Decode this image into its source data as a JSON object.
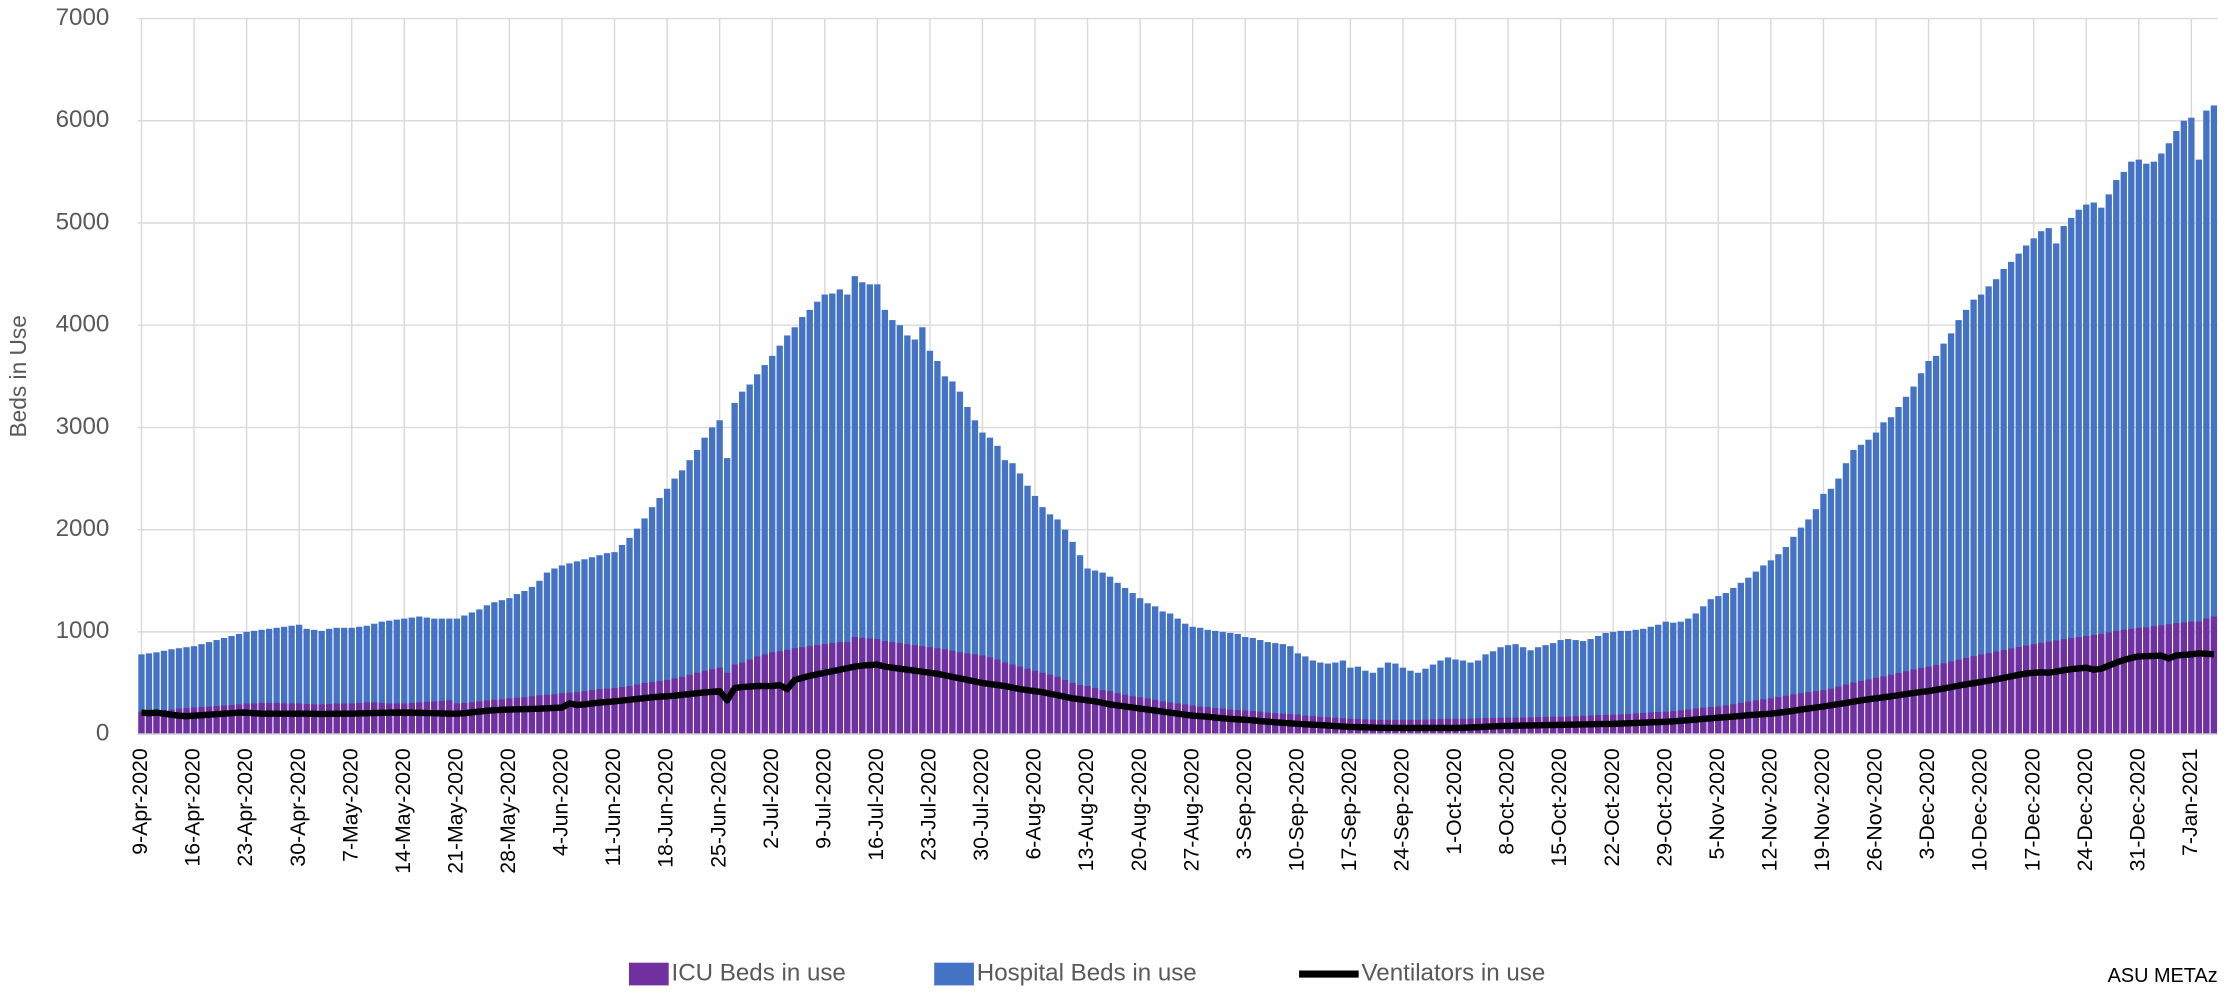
{
  "chart_data": {
    "type": "bar",
    "y_label": "Beds in Use",
    "annotation": "ASU METAz",
    "categories": [
      "9-Apr-2020",
      null,
      null,
      null,
      null,
      null,
      null,
      "16-Apr-2020",
      null,
      null,
      null,
      null,
      null,
      null,
      "23-Apr-2020",
      null,
      null,
      null,
      null,
      null,
      null,
      "30-Apr-2020",
      null,
      null,
      null,
      null,
      null,
      null,
      "7-May-2020",
      null,
      null,
      null,
      null,
      null,
      null,
      "14-May-2020",
      null,
      null,
      null,
      null,
      null,
      null,
      "21-May-2020",
      null,
      null,
      null,
      null,
      null,
      null,
      "28-May-2020",
      null,
      null,
      null,
      null,
      null,
      null,
      "4-Jun-2020",
      null,
      null,
      null,
      null,
      null,
      null,
      "11-Jun-2020",
      null,
      null,
      null,
      null,
      null,
      null,
      "18-Jun-2020",
      null,
      null,
      null,
      null,
      null,
      null,
      "25-Jun-2020",
      null,
      null,
      null,
      null,
      null,
      null,
      "2-Jul-2020",
      null,
      null,
      null,
      null,
      null,
      null,
      "9-Jul-2020",
      null,
      null,
      null,
      null,
      null,
      null,
      "16-Jul-2020",
      null,
      null,
      null,
      null,
      null,
      null,
      "23-Jul-2020",
      null,
      null,
      null,
      null,
      null,
      null,
      "30-Jul-2020",
      null,
      null,
      null,
      null,
      null,
      null,
      "6-Aug-2020",
      null,
      null,
      null,
      null,
      null,
      null,
      "13-Aug-2020",
      null,
      null,
      null,
      null,
      null,
      null,
      "20-Aug-2020",
      null,
      null,
      null,
      null,
      null,
      null,
      "27-Aug-2020",
      null,
      null,
      null,
      null,
      null,
      null,
      "3-Sep-2020",
      null,
      null,
      null,
      null,
      null,
      null,
      "10-Sep-2020",
      null,
      null,
      null,
      null,
      null,
      null,
      "17-Sep-2020",
      null,
      null,
      null,
      null,
      null,
      null,
      "24-Sep-2020",
      null,
      null,
      null,
      null,
      null,
      null,
      "1-Oct-2020",
      null,
      null,
      null,
      null,
      null,
      null,
      "8-Oct-2020",
      null,
      null,
      null,
      null,
      null,
      null,
      "15-Oct-2020",
      null,
      null,
      null,
      null,
      null,
      null,
      "22-Oct-2020",
      null,
      null,
      null,
      null,
      null,
      null,
      "29-Oct-2020",
      null,
      null,
      null,
      null,
      null,
      null,
      "5-Nov-2020",
      null,
      null,
      null,
      null,
      null,
      null,
      "12-Nov-2020",
      null,
      null,
      null,
      null,
      null,
      null,
      "19-Nov-2020",
      null,
      null,
      null,
      null,
      null,
      null,
      "26-Nov-2020",
      null,
      null,
      null,
      null,
      null,
      null,
      "3-Dec-2020",
      null,
      null,
      null,
      null,
      null,
      null,
      "10-Dec-2020",
      null,
      null,
      null,
      null,
      null,
      null,
      "17-Dec-2020",
      null,
      null,
      null,
      null,
      null,
      null,
      "24-Dec-2020",
      null,
      null,
      null,
      null,
      null,
      null,
      "31-Dec-2020",
      null,
      null,
      null,
      null,
      null,
      null,
      "7-Jan-2021",
      null,
      null,
      null
    ],
    "series": [
      {
        "name": "ICU Beds in use",
        "type": "bar",
        "color": "#7030a0",
        "values": [
          220,
          225,
          230,
          235,
          240,
          250,
          255,
          260,
          265,
          270,
          275,
          280,
          285,
          290,
          300,
          300,
          305,
          305,
          305,
          300,
          300,
          300,
          295,
          290,
          290,
          295,
          300,
          300,
          300,
          305,
          310,
          310,
          305,
          300,
          300,
          300,
          305,
          310,
          315,
          320,
          325,
          330,
          300,
          305,
          310,
          320,
          330,
          335,
          340,
          350,
          355,
          360,
          370,
          380,
          385,
          390,
          400,
          405,
          410,
          420,
          430,
          440,
          445,
          450,
          460,
          470,
          485,
          500,
          510,
          520,
          530,
          545,
          560,
          580,
          600,
          620,
          635,
          650,
          600,
          680,
          700,
          730,
          760,
          780,
          800,
          810,
          825,
          840,
          850,
          860,
          870,
          880,
          890,
          900,
          900,
          950,
          940,
          935,
          930,
          910,
          900,
          890,
          880,
          870,
          860,
          850,
          840,
          830,
          815,
          800,
          790,
          780,
          770,
          750,
          730,
          700,
          680,
          660,
          640,
          620,
          600,
          580,
          560,
          530,
          500,
          480,
          470,
          450,
          430,
          420,
          400,
          385,
          370,
          360,
          350,
          335,
          320,
          310,
          300,
          290,
          280,
          270,
          265,
          255,
          250,
          240,
          235,
          230,
          225,
          220,
          210,
          205,
          200,
          195,
          190,
          180,
          175,
          170,
          165,
          160,
          155,
          150,
          148,
          145,
          142,
          140,
          140,
          140,
          140,
          140,
          140,
          142,
          145,
          148,
          150,
          150,
          150,
          152,
          155,
          157,
          158,
          160,
          160,
          160,
          162,
          165,
          167,
          168,
          170,
          170,
          172,
          175,
          178,
          182,
          186,
          188,
          190,
          193,
          197,
          202,
          207,
          212,
          216,
          220,
          225,
          232,
          240,
          250,
          258,
          265,
          270,
          280,
          292,
          305,
          318,
          330,
          340,
          350,
          362,
          375,
          388,
          400,
          410,
          420,
          430,
          445,
          465,
          485,
          505,
          520,
          535,
          550,
          565,
          580,
          598,
          615,
          632,
          648,
          660,
          675,
          692,
          710,
          728,
          745,
          762,
          780,
          792,
          808,
          822,
          838,
          852,
          866,
          880,
          892,
          905,
          915,
          928,
          940,
          950,
          960,
          970,
          980,
          995,
          1010,
          1020,
          1030,
          1040,
          1045,
          1055,
          1065,
          1075,
          1085,
          1092,
          1100,
          1100,
          1130,
          1150
        ]
      },
      {
        "name": "Hospital Beds in use",
        "type": "bar",
        "color": "#4472c4",
        "values": [
          780,
          790,
          800,
          815,
          830,
          840,
          850,
          860,
          880,
          900,
          920,
          940,
          960,
          980,
          1000,
          1010,
          1020,
          1030,
          1040,
          1050,
          1060,
          1070,
          1030,
          1020,
          1010,
          1030,
          1040,
          1040,
          1040,
          1050,
          1060,
          1080,
          1100,
          1110,
          1120,
          1130,
          1140,
          1150,
          1140,
          1130,
          1130,
          1130,
          1130,
          1160,
          1190,
          1220,
          1260,
          1290,
          1310,
          1330,
          1370,
          1400,
          1440,
          1500,
          1580,
          1620,
          1650,
          1670,
          1690,
          1710,
          1730,
          1750,
          1770,
          1780,
          1850,
          1920,
          2010,
          2110,
          2220,
          2310,
          2400,
          2500,
          2580,
          2680,
          2780,
          2900,
          3000,
          3070,
          2700,
          3240,
          3350,
          3420,
          3520,
          3610,
          3700,
          3800,
          3900,
          3980,
          4080,
          4150,
          4230,
          4300,
          4310,
          4350,
          4300,
          4480,
          4420,
          4400,
          4400,
          4150,
          4050,
          4000,
          3900,
          3860,
          3980,
          3750,
          3650,
          3500,
          3450,
          3350,
          3200,
          3070,
          2950,
          2900,
          2820,
          2680,
          2650,
          2550,
          2430,
          2330,
          2220,
          2150,
          2100,
          2000,
          1880,
          1750,
          1620,
          1600,
          1580,
          1540,
          1480,
          1430,
          1380,
          1330,
          1280,
          1250,
          1200,
          1180,
          1130,
          1080,
          1050,
          1040,
          1020,
          1010,
          1000,
          990,
          980,
          950,
          940,
          920,
          900,
          890,
          880,
          860,
          790,
          760,
          720,
          700,
          690,
          700,
          720,
          650,
          660,
          620,
          600,
          650,
          700,
          690,
          650,
          620,
          600,
          640,
          680,
          720,
          750,
          730,
          720,
          700,
          720,
          780,
          810,
          850,
          870,
          880,
          850,
          820,
          850,
          870,
          890,
          920,
          930,
          920,
          910,
          930,
          960,
          990,
          1000,
          1010,
          1010,
          1020,
          1030,
          1050,
          1070,
          1100,
          1090,
          1100,
          1130,
          1180,
          1250,
          1320,
          1350,
          1380,
          1430,
          1480,
          1530,
          1590,
          1650,
          1700,
          1760,
          1830,
          1930,
          2020,
          2100,
          2200,
          2350,
          2400,
          2500,
          2650,
          2780,
          2830,
          2880,
          2950,
          3050,
          3100,
          3200,
          3300,
          3400,
          3530,
          3650,
          3700,
          3820,
          3920,
          4050,
          4150,
          4250,
          4300,
          4380,
          4450,
          4550,
          4620,
          4700,
          4780,
          4850,
          4920,
          4950,
          4800,
          4970,
          5050,
          5130,
          5180,
          5200,
          5150,
          5280,
          5420,
          5500,
          5600,
          5620,
          5580,
          5600,
          5680,
          5780,
          5900,
          6000,
          6030,
          5620,
          6100,
          6150
        ]
      },
      {
        "name": "Ventilators in use",
        "type": "line",
        "color": "#000000",
        "values": [
          210,
          205,
          210,
          200,
          190,
          180,
          175,
          180,
          185,
          190,
          195,
          200,
          205,
          210,
          210,
          205,
          200,
          200,
          200,
          200,
          200,
          200,
          200,
          198,
          196,
          198,
          200,
          200,
          200,
          202,
          204,
          206,
          208,
          210,
          210,
          210,
          210,
          208,
          206,
          204,
          202,
          200,
          200,
          205,
          212,
          220,
          228,
          234,
          238,
          240,
          242,
          244,
          246,
          248,
          252,
          256,
          260,
          300,
          285,
          290,
          300,
          308,
          314,
          320,
          328,
          336,
          344,
          352,
          360,
          366,
          370,
          376,
          384,
          392,
          400,
          408,
          414,
          420,
          330,
          450,
          460,
          465,
          470,
          470,
          470,
          480,
          440,
          530,
          550,
          570,
          585,
          600,
          615,
          630,
          645,
          660,
          670,
          675,
          680,
          660,
          650,
          640,
          630,
          620,
          610,
          600,
          590,
          575,
          560,
          545,
          530,
          515,
          500,
          490,
          480,
          470,
          455,
          440,
          430,
          420,
          410,
          395,
          380,
          365,
          350,
          340,
          330,
          320,
          305,
          290,
          280,
          270,
          260,
          250,
          240,
          230,
          220,
          210,
          200,
          190,
          180,
          175,
          170,
          162,
          155,
          148,
          144,
          140,
          135,
          128,
          122,
          115,
          110,
          105,
          100,
          96,
          92,
          88,
          84,
          78,
          74,
          70,
          68,
          66,
          64,
          62,
          61,
          60,
          60,
          60,
          60,
          60,
          60,
          60,
          60,
          60,
          62,
          65,
          68,
          72,
          75,
          78,
          80,
          82,
          84,
          85,
          86,
          88,
          89,
          90,
          92,
          93,
          95,
          96,
          98,
          99,
          100,
          103,
          106,
          109,
          112,
          115,
          118,
          120,
          125,
          130,
          136,
          142,
          148,
          154,
          160,
          166,
          172,
          178,
          185,
          190,
          195,
          200,
          208,
          218,
          228,
          240,
          250,
          260,
          270,
          282,
          293,
          305,
          318,
          330,
          340,
          350,
          360,
          370,
          380,
          392,
          402,
          412,
          420,
          433,
          446,
          460,
          474,
          487,
          498,
          510,
          522,
          535,
          550,
          565,
          580,
          592,
          600,
          605,
          600,
          612,
          625,
          635,
          642,
          650,
          630,
          640,
          670,
          700,
          725,
          745,
          760,
          762,
          765,
          768,
          740,
          770,
          775,
          780,
          790,
          785,
          780
        ]
      }
    ],
    "ylim": [
      0,
      7000
    ],
    "yticks": [
      0,
      1000,
      2000,
      3000,
      4000,
      5000,
      6000,
      7000
    ],
    "grid": true,
    "legend": "bottom"
  }
}
